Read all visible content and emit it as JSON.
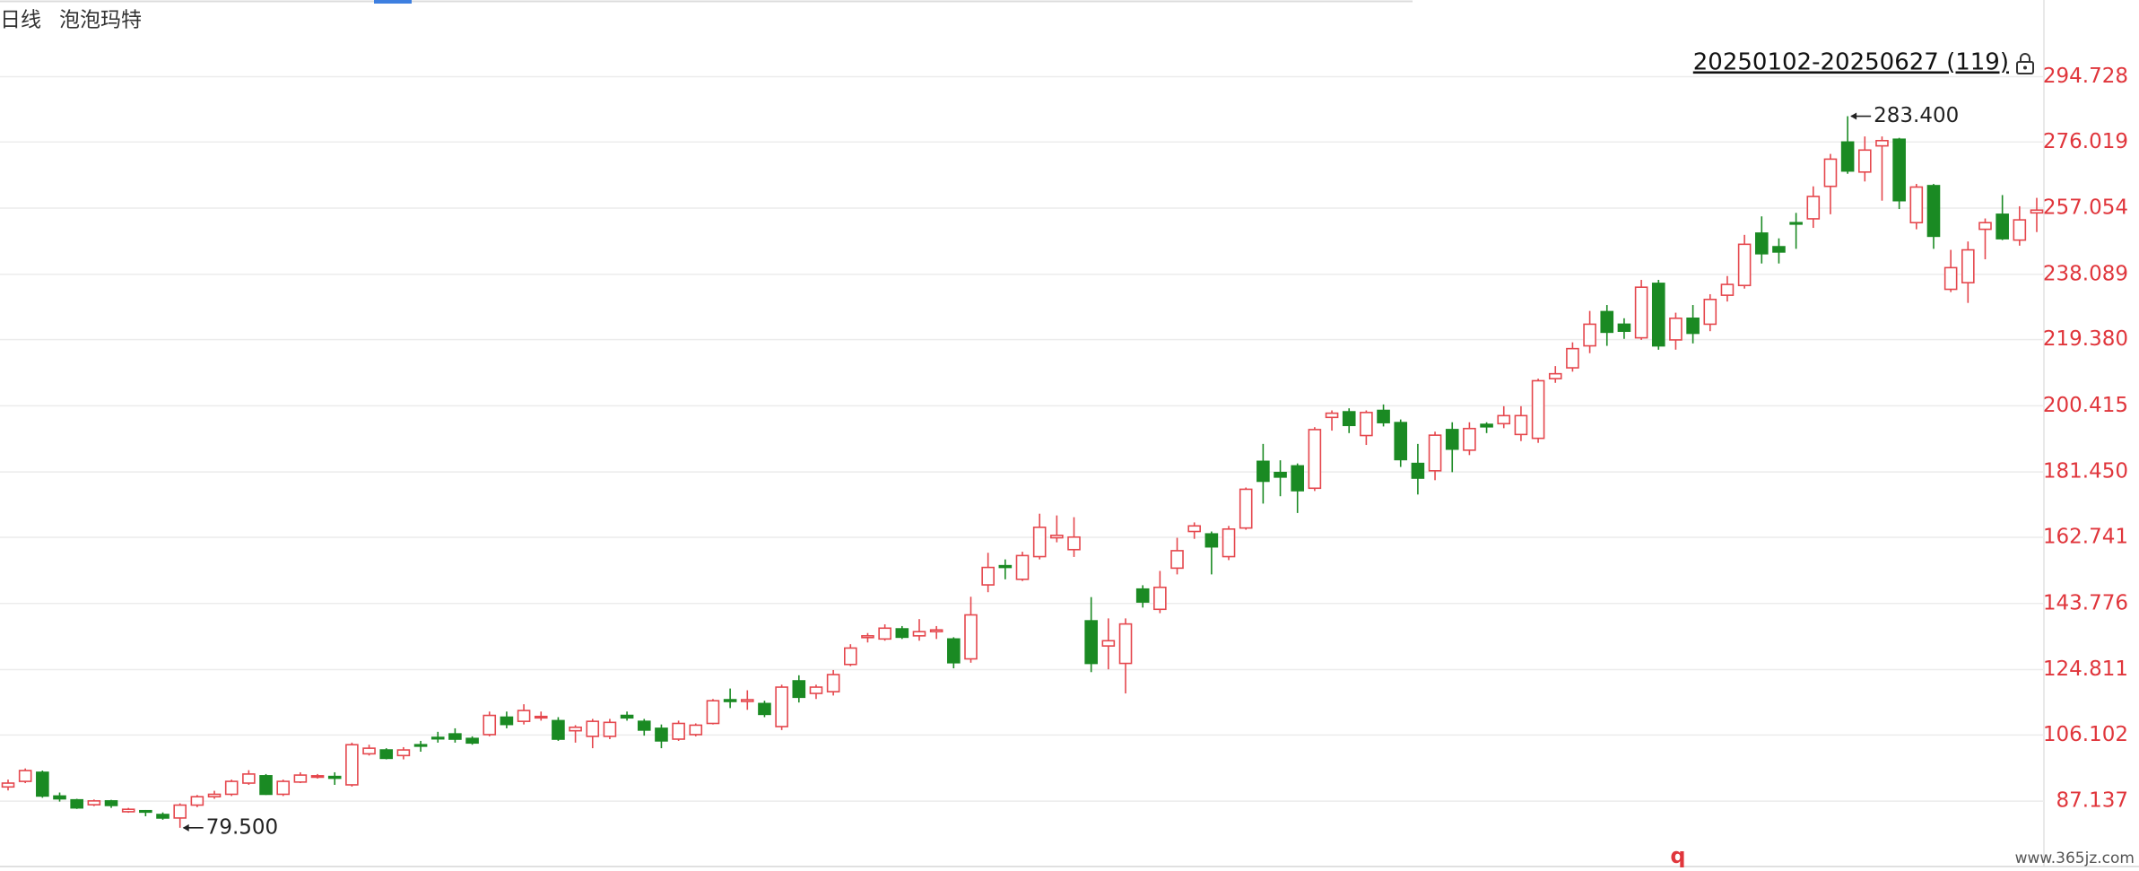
{
  "chart_data": {
    "type": "candlestick",
    "period": "日线",
    "title": "泡泡玛特",
    "range_label": "20250102-20250627 (119)",
    "up_color": "#e5474d",
    "down_color": "#1a8a23",
    "grid": true,
    "ylim": [
      68.4,
      316.7
    ],
    "yticks": [
      87.137,
      106.102,
      124.811,
      143.776,
      162.741,
      {
        "value": 181.45,
        "label": "181.450"
      },
      200.415,
      {
        "value": 219.38,
        "label": "219.380"
      },
      238.089,
      257.054,
      276.019,
      294.728
    ],
    "open": [
      91.2,
      92.8,
      95.4,
      88.6,
      87.5,
      86.1,
      87.2,
      84.1,
      84.4,
      83.3,
      82.3,
      86.0,
      88.4,
      89.1,
      92.3,
      94.4,
      89.1,
      92.6,
      94.1,
      94.2,
      91.8,
      100.7,
      101.8,
      100.2,
      103.3,
      105.4,
      106.4,
      105.1,
      106.2,
      111.2,
      110.0,
      111.0,
      110.2,
      107.3,
      105.7,
      105.7,
      111.7,
      110.0,
      108.0,
      104.9,
      106.2,
      109.4,
      116.2,
      115.7,
      115.1,
      108.5,
      121.6,
      118.0,
      118.5,
      126.3,
      134.0,
      133.6,
      136.5,
      134.5,
      135.7,
      133.6,
      127.9,
      149.1,
      154.6,
      150.7,
      157.2,
      162.6,
      159.2,
      138.8,
      131.6,
      126.6,
      147.9,
      142.1,
      153.9,
      164.4,
      163.7,
      157.2,
      165.4,
      184.5,
      181.3,
      183.2,
      176.8,
      197.1,
      198.7,
      191.9,
      199.1,
      195.6,
      183.9,
      181.8,
      193.6,
      187.7,
      195.1,
      195.3,
      192.2,
      191.1,
      208.2,
      211.3,
      217.6,
      227.4,
      223.8,
      219.9,
      235.5,
      219.3,
      225.5,
      223.8,
      232.1,
      234.9,
      249.9,
      246.0,
      252.9,
      254.0,
      263.3,
      276.0,
      267.4,
      274.9,
      276.8,
      252.9,
      263.5,
      233.8,
      235.7,
      251.0,
      255.3,
      247.9,
      255.7
    ],
    "high": [
      93.3,
      96.5,
      95.9,
      89.6,
      87.8,
      87.6,
      87.5,
      85.2,
      84.6,
      83.9,
      86.5,
      88.9,
      90.1,
      93.3,
      96.0,
      94.9,
      93.3,
      95.4,
      94.9,
      95.4,
      103.9,
      103.3,
      102.3,
      102.6,
      104.4,
      107.0,
      108.0,
      105.7,
      112.8,
      112.8,
      114.9,
      112.8,
      111.2,
      108.9,
      110.7,
      110.7,
      112.8,
      110.7,
      109.1,
      110.2,
      109.4,
      116.4,
      119.4,
      118.9,
      115.9,
      120.5,
      123.2,
      120.5,
      124.7,
      132.1,
      135.3,
      137.8,
      137.3,
      139.3,
      137.3,
      134.1,
      145.7,
      158.3,
      156.4,
      158.6,
      169.5,
      169.0,
      168.5,
      145.6,
      139.5,
      139.5,
      149.0,
      153.1,
      162.6,
      167.0,
      164.4,
      166.0,
      177.0,
      189.5,
      184.8,
      183.9,
      194.3,
      199.1,
      199.7,
      199.1,
      200.8,
      196.5,
      189.5,
      193.0,
      195.7,
      195.7,
      195.7,
      200.3,
      200.3,
      208.2,
      211.8,
      218.6,
      227.6,
      229.3,
      225.5,
      236.5,
      236.5,
      227.1,
      229.3,
      232.4,
      237.6,
      249.4,
      254.7,
      248.4,
      255.7,
      263.3,
      272.6,
      283.4,
      277.6,
      277.6,
      277.2,
      264.0,
      264.0,
      245.1,
      247.5,
      254.1,
      260.8,
      257.6,
      260.0
    ],
    "low": [
      90.2,
      92.3,
      88.1,
      87.0,
      84.9,
      85.7,
      85.2,
      83.8,
      82.8,
      81.8,
      79.5,
      85.4,
      87.8,
      88.6,
      91.8,
      88.9,
      88.6,
      92.3,
      93.6,
      91.8,
      91.3,
      100.2,
      99.1,
      99.1,
      101.3,
      103.9,
      103.9,
      103.3,
      105.7,
      108.0,
      109.1,
      110.2,
      104.4,
      103.9,
      102.3,
      104.9,
      110.2,
      105.9,
      102.3,
      104.4,
      105.7,
      109.1,
      113.8,
      113.3,
      111.2,
      107.5,
      115.4,
      116.4,
      117.4,
      125.8,
      132.6,
      133.1,
      133.6,
      133.1,
      133.6,
      125.2,
      126.8,
      147.0,
      150.7,
      150.2,
      156.4,
      161.3,
      157.1,
      124.1,
      124.9,
      118.0,
      142.6,
      141.0,
      152.1,
      162.3,
      152.1,
      156.2,
      164.9,
      172.4,
      174.5,
      169.7,
      176.0,
      193.3,
      192.6,
      189.2,
      194.5,
      182.9,
      175.0,
      179.1,
      181.4,
      186.3,
      192.6,
      194.0,
      190.3,
      189.8,
      207.0,
      210.2,
      215.5,
      217.6,
      219.6,
      219.3,
      216.5,
      216.5,
      218.3,
      221.8,
      230.3,
      234.0,
      241.2,
      241.2,
      245.4,
      251.4,
      255.3,
      266.9,
      264.7,
      259.2,
      256.8,
      251.0,
      245.4,
      233.0,
      229.9,
      242.4,
      247.9,
      246.3,
      250.2
    ],
    "close": [
      92.3,
      95.9,
      88.6,
      87.8,
      85.2,
      87.2,
      85.9,
      84.8,
      84.0,
      82.3,
      86.0,
      88.4,
      89.1,
      92.8,
      94.9,
      89.1,
      92.8,
      94.6,
      94.4,
      93.7,
      103.3,
      102.3,
      99.4,
      101.8,
      103.0,
      105.1,
      104.9,
      103.8,
      111.7,
      109.1,
      113.1,
      111.4,
      104.9,
      108.3,
      110.0,
      109.7,
      111.0,
      107.5,
      104.4,
      109.4,
      108.9,
      115.9,
      115.7,
      116.2,
      112.0,
      119.8,
      116.9,
      119.8,
      123.4,
      131.0,
      134.5,
      136.7,
      134.1,
      135.7,
      136.2,
      126.8,
      140.5,
      154.1,
      154.1,
      157.5,
      165.6,
      163.3,
      162.8,
      126.6,
      133.1,
      137.9,
      144.2,
      148.4,
      158.9,
      166.0,
      160.0,
      165.1,
      176.5,
      178.8,
      180.0,
      176.1,
      193.6,
      198.3,
      194.8,
      198.5,
      195.6,
      185.0,
      179.7,
      192.0,
      188.0,
      193.9,
      194.4,
      197.6,
      197.6,
      207.6,
      209.6,
      216.8,
      223.8,
      221.5,
      221.8,
      234.4,
      217.6,
      225.5,
      221.2,
      230.9,
      235.2,
      246.7,
      244.0,
      244.5,
      252.5,
      260.4,
      271.1,
      267.7,
      273.7,
      276.4,
      259.2,
      263.1,
      249.0,
      240.0,
      245.1,
      252.9,
      248.3,
      253.7,
      256.5
    ],
    "max_annotation": {
      "value": 283.4,
      "label": "283.400"
    },
    "min_annotation": {
      "value": 79.5,
      "label": "79.500"
    },
    "marker": "q",
    "watermark": "www.365jz.com"
  }
}
